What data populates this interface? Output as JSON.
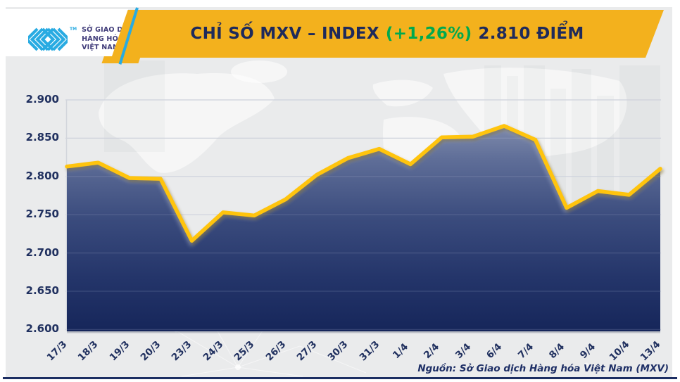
{
  "header": {
    "logo": {
      "org_line1": "SỞ GIAO DỊCH",
      "org_line2": "HÀNG HÓA",
      "org_line3": "VIỆT NAM",
      "trademark": "TM",
      "mark_color": "#29ABE2",
      "text_color": "#3E3A78"
    },
    "banner_color": "#F3B11D",
    "title": {
      "main": "CHỈ SỐ MXV – INDEX",
      "change": "(+1,26%)",
      "value": "2.810 ĐIỂM",
      "navy_color": "#1E2A5B",
      "green_color": "#00A94E"
    }
  },
  "chart_data": {
    "type": "area",
    "title": "CHỈ SỐ MXV – INDEX (+1,26%) 2.810 ĐIỂM",
    "categories": [
      "17/3",
      "18/3",
      "19/3",
      "20/3",
      "23/3",
      "24/3",
      "25/3",
      "26/3",
      "27/3",
      "30/3",
      "31/3",
      "1/4",
      "2/4",
      "3/4",
      "6/4",
      "7/4",
      "8/4",
      "9/4",
      "10/4",
      "13/4"
    ],
    "values": [
      2813,
      2818,
      2798,
      2797,
      2716,
      2753,
      2749,
      2770,
      2802,
      2824,
      2836,
      2816,
      2851,
      2852,
      2866,
      2848,
      2759,
      2781,
      2776,
      2810
    ],
    "ylim": [
      2600,
      2900
    ],
    "ytick_step": 50,
    "ytick_labels": [
      "2.900",
      "2.850",
      "2.800",
      "2.750",
      "2.700",
      "2.650",
      "2.600"
    ],
    "grid": "horizontal",
    "legend": "none",
    "line_color": "#FFC40E",
    "area_gradient_top": "#8893B1",
    "area_gradient_bottom": "#16265A",
    "axis_label_color": "#20305F"
  },
  "footer": {
    "source": "Nguồn: Sở Giao dịch Hàng hóa Việt Nam (MXV)"
  }
}
